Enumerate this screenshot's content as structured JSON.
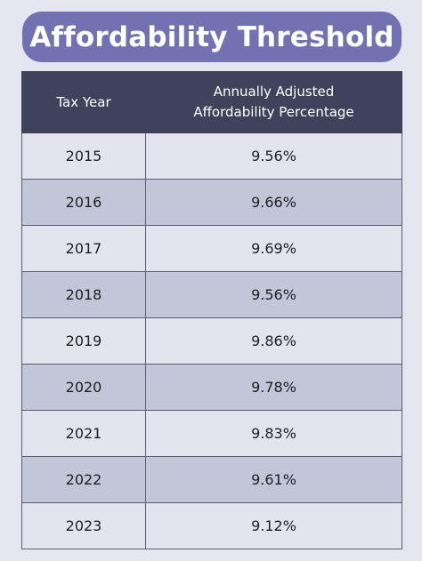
{
  "title": "Affordability Threshold",
  "table": {
    "headers": {
      "year": "Tax Year",
      "percentage_line1": "Annually Adjusted",
      "percentage_line2": "Affordability Percentage"
    },
    "rows": [
      {
        "year": "2015",
        "percentage": "9.56%"
      },
      {
        "year": "2016",
        "percentage": "9.66%"
      },
      {
        "year": "2017",
        "percentage": "9.69%"
      },
      {
        "year": "2018",
        "percentage": "9.56%"
      },
      {
        "year": "2019",
        "percentage": "9.86%"
      },
      {
        "year": "2020",
        "percentage": "9.78%"
      },
      {
        "year": "2021",
        "percentage": "9.83%"
      },
      {
        "year": "2022",
        "percentage": "9.61%"
      },
      {
        "year": "2023",
        "percentage": "9.12%"
      }
    ]
  },
  "colors": {
    "background": "#e6e6f0",
    "title_banner": "#7272b3",
    "header": "#3f425a",
    "row_light": "#e4e4ee",
    "row_dark": "#c3c6d8"
  }
}
